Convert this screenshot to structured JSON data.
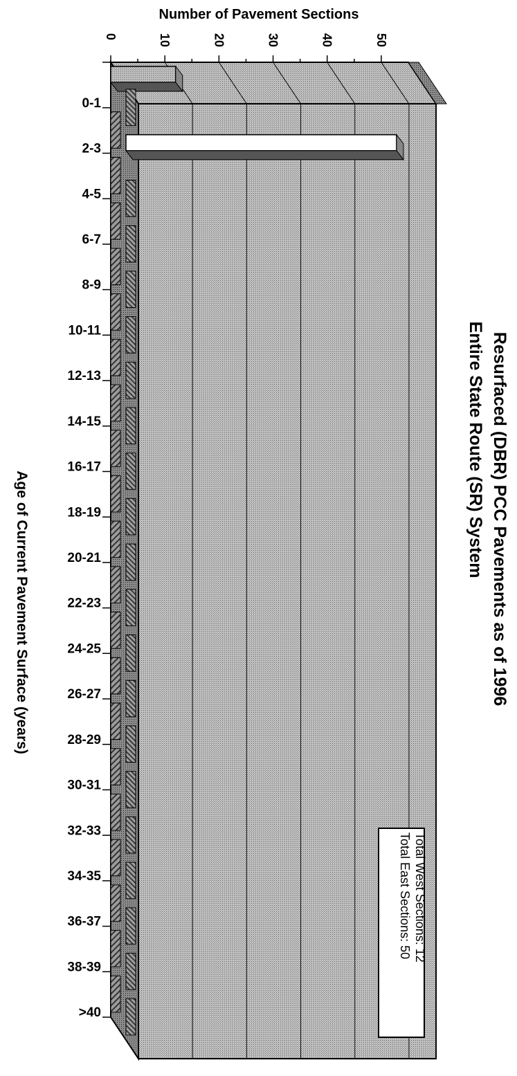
{
  "chart_data": {
    "type": "bar",
    "orientation": "horizontal-3d",
    "title": "Resurfaced (DBR) PCC Pavements as of 1996",
    "subtitle": "Entire State Route (SR) System",
    "xlabel": "Number of Pavement Sections",
    "ylabel": "Age of Current Pavement Surface (years)",
    "xlim": [
      0,
      55
    ],
    "xticks": [
      "0",
      "10",
      "20",
      "30",
      "40",
      "50"
    ],
    "xtick_values": [
      0,
      10,
      20,
      30,
      40,
      50
    ],
    "categories": [
      "0-1",
      "2-3",
      "4-5",
      "6-7",
      "8-9",
      "10-11",
      "12-13",
      "14-15",
      "16-17",
      "18-19",
      "20-21",
      "22-23",
      "24-25",
      "26-27",
      "28-29",
      "30-31",
      "32-33",
      "34-35",
      "36-37",
      "38-39",
      ">40"
    ],
    "series": [
      {
        "name": "East",
        "color": "#ffffff",
        "values": [
          0,
          50,
          0,
          0,
          0,
          0,
          0,
          0,
          0,
          0,
          0,
          0,
          0,
          0,
          0,
          0,
          0,
          0,
          0,
          0,
          0
        ]
      },
      {
        "name": "West",
        "color": "#9c9c9c",
        "values": [
          12,
          0,
          0,
          0,
          0,
          0,
          0,
          0,
          0,
          0,
          0,
          0,
          0,
          0,
          0,
          0,
          0,
          0,
          0,
          0,
          0
        ]
      }
    ],
    "legend_placement": "bottom-right",
    "legend_lines": [
      "Total East Sections:  50",
      "Total West Sections:  12"
    ],
    "grid": true
  }
}
